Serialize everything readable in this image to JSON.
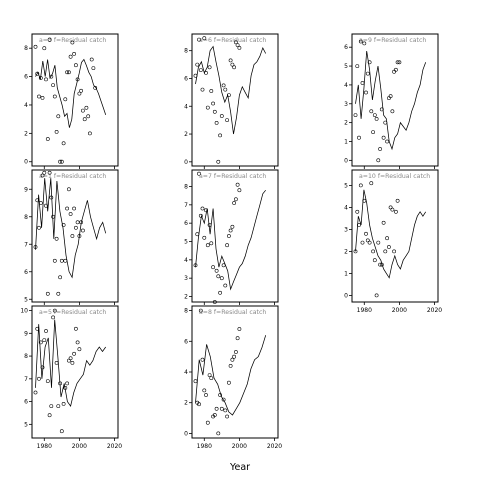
{
  "chart_data": {
    "type": "scatter",
    "xlabel": "Year",
    "series_label_template": "f=Residual catch",
    "x_tick_labels": [
      "1980",
      "2000",
      "2020"
    ],
    "xlim": [
      1973,
      2022
    ],
    "panels": [
      {
        "title": "a=3",
        "ylim": [
          -0.3,
          9
        ],
        "y_ticks": [
          0,
          2,
          4,
          6,
          8
        ],
        "line": [
          6.0,
          6.3,
          5.8,
          7.1,
          6.0,
          7.2,
          5.9,
          6.2,
          6.8,
          5.2,
          4.6,
          4.0,
          3.2,
          3.4,
          2.4,
          3.0,
          4.8,
          5.5,
          6.2,
          7.0,
          7.2,
          6.8,
          6.3,
          6.0,
          5.4,
          5.2,
          4.8,
          4.3,
          3.8,
          3.3
        ],
        "points": [
          [
            1975,
            8.1
          ],
          [
            1976,
            6.2
          ],
          [
            1977,
            4.6
          ],
          [
            1978,
            5.9
          ],
          [
            1979,
            4.5
          ],
          [
            1980,
            8.0
          ],
          [
            1981,
            5.8
          ],
          [
            1982,
            1.6
          ],
          [
            1983,
            8.6
          ],
          [
            1984,
            6.0
          ],
          [
            1985,
            5.4
          ],
          [
            1986,
            4.6
          ],
          [
            1987,
            2.1
          ],
          [
            1988,
            3.2
          ],
          [
            1989,
            0.0
          ],
          [
            1990,
            0.0
          ],
          [
            1991,
            1.3
          ],
          [
            1992,
            4.4
          ],
          [
            1993,
            6.3
          ],
          [
            1994,
            6.3
          ],
          [
            1995,
            7.4
          ],
          [
            1996,
            8.4
          ],
          [
            1997,
            7.6
          ],
          [
            1998,
            6.8
          ],
          [
            1999,
            5.8
          ],
          [
            2000,
            4.8
          ],
          [
            2001,
            5.0
          ],
          [
            2002,
            3.6
          ],
          [
            2003,
            3.0
          ],
          [
            2004,
            3.8
          ],
          [
            2005,
            3.2
          ],
          [
            2006,
            2.0
          ],
          [
            2007,
            7.2
          ],
          [
            2008,
            6.6
          ],
          [
            2009,
            5.2
          ]
        ]
      },
      {
        "title": "a=6",
        "ylim": [
          -0.3,
          9.2
        ],
        "y_ticks": [
          0,
          2,
          4,
          6,
          8
        ],
        "line": [
          5.6,
          6.8,
          7.2,
          6.4,
          6.8,
          8.0,
          8.3,
          7.2,
          6.2,
          5.0,
          4.3,
          4.8,
          3.6,
          2.0,
          3.2,
          4.8,
          5.4,
          5.0,
          4.6,
          6.2,
          7.0,
          7.2,
          7.6,
          8.2,
          7.8
        ],
        "points": [
          [
            1975,
            6.2
          ],
          [
            1976,
            7.0
          ],
          [
            1977,
            8.8
          ],
          [
            1978,
            6.6
          ],
          [
            1979,
            5.2
          ],
          [
            1980,
            8.9
          ],
          [
            1981,
            6.4
          ],
          [
            1982,
            3.9
          ],
          [
            1983,
            6.8
          ],
          [
            1984,
            5.1
          ],
          [
            1985,
            4.2
          ],
          [
            1986,
            3.6
          ],
          [
            1987,
            2.8
          ],
          [
            1988,
            0.0
          ],
          [
            1989,
            1.9
          ],
          [
            1990,
            3.3
          ],
          [
            1991,
            5.5
          ],
          [
            1992,
            5.2
          ],
          [
            1993,
            3.0
          ],
          [
            1994,
            4.8
          ],
          [
            1995,
            7.3
          ],
          [
            1996,
            7.0
          ],
          [
            1997,
            6.8
          ],
          [
            1998,
            8.6
          ],
          [
            1999,
            8.4
          ],
          [
            2000,
            8.2
          ]
        ]
      },
      {
        "title": "a=9",
        "ylim": [
          -0.3,
          6.7
        ],
        "y_ticks": [
          0,
          1,
          2,
          3,
          4,
          5,
          6
        ],
        "line": [
          3.0,
          4.0,
          2.2,
          3.8,
          5.8,
          4.8,
          3.2,
          4.2,
          5.0,
          3.8,
          2.4,
          2.2,
          1.0,
          0.6,
          1.2,
          1.4,
          2.0,
          1.8,
          1.6,
          2.0,
          2.6,
          3.0,
          3.6,
          4.0,
          4.8,
          5.2
        ],
        "points": [
          [
            1975,
            2.4
          ],
          [
            1976,
            5.0
          ],
          [
            1977,
            1.2
          ],
          [
            1978,
            6.3
          ],
          [
            1979,
            4.1
          ],
          [
            1980,
            6.2
          ],
          [
            1981,
            3.6
          ],
          [
            1982,
            4.6
          ],
          [
            1983,
            5.2
          ],
          [
            1984,
            2.6
          ],
          [
            1985,
            1.5
          ],
          [
            1986,
            2.4
          ],
          [
            1987,
            2.2
          ],
          [
            1988,
            0.0
          ],
          [
            1989,
            0.6
          ],
          [
            1990,
            2.7
          ],
          [
            1991,
            1.2
          ],
          [
            1992,
            2.0
          ],
          [
            1993,
            1.0
          ],
          [
            1994,
            3.3
          ],
          [
            1995,
            3.4
          ],
          [
            1996,
            2.6
          ],
          [
            1997,
            4.7
          ],
          [
            1998,
            4.8
          ],
          [
            1999,
            5.2
          ],
          [
            2000,
            5.2
          ]
        ]
      },
      {
        "title": "a=1",
        "ylim": [
          4.9,
          9.7
        ],
        "y_ticks": [
          5,
          6,
          7,
          8,
          9
        ],
        "line": [
          6.8,
          8.8,
          7.6,
          9.4,
          8.2,
          9.4,
          7.2,
          9.3,
          8.2,
          7.6,
          6.6,
          6.0,
          5.8,
          6.6,
          7.0,
          7.8,
          8.2,
          8.6,
          8.0,
          7.6,
          7.2,
          7.6,
          7.8,
          7.4
        ],
        "points": [
          [
            1975,
            6.9
          ],
          [
            1976,
            8.6
          ],
          [
            1977,
            7.6
          ],
          [
            1978,
            8.5
          ],
          [
            1979,
            9.5
          ],
          [
            1980,
            9.6
          ],
          [
            1981,
            8.4
          ],
          [
            1982,
            5.2
          ],
          [
            1983,
            9.6
          ],
          [
            1984,
            8.7
          ],
          [
            1985,
            8.0
          ],
          [
            1986,
            6.4
          ],
          [
            1987,
            7.2
          ],
          [
            1988,
            5.2
          ],
          [
            1989,
            5.8
          ],
          [
            1990,
            6.4
          ],
          [
            1991,
            7.7
          ],
          [
            1992,
            6.4
          ],
          [
            1993,
            8.3
          ],
          [
            1994,
            9.0
          ],
          [
            1995,
            8.1
          ],
          [
            1996,
            7.3
          ],
          [
            1997,
            8.3
          ],
          [
            1998,
            7.6
          ],
          [
            1999,
            7.8
          ],
          [
            2000,
            7.3
          ],
          [
            2001,
            7.8
          ],
          [
            2002,
            7.5
          ]
        ]
      },
      {
        "title": "a=7",
        "ylim": [
          1.7,
          8.9
        ],
        "y_ticks": [
          2,
          3,
          4,
          5,
          6,
          7,
          8
        ],
        "line": [
          3.6,
          5.2,
          6.4,
          6.0,
          6.8,
          5.4,
          6.8,
          4.6,
          3.6,
          4.2,
          3.8,
          3.4,
          2.4,
          2.8,
          3.2,
          3.6,
          3.8,
          4.2,
          4.8,
          5.2,
          5.8,
          6.4,
          7.0,
          7.6,
          7.8
        ],
        "points": [
          [
            1975,
            3.7
          ],
          [
            1976,
            5.4
          ],
          [
            1977,
            8.7
          ],
          [
            1978,
            6.4
          ],
          [
            1979,
            6.8
          ],
          [
            1980,
            5.2
          ],
          [
            1981,
            6.7
          ],
          [
            1982,
            4.8
          ],
          [
            1983,
            5.9
          ],
          [
            1984,
            4.9
          ],
          [
            1985,
            3.6
          ],
          [
            1986,
            1.7
          ],
          [
            1987,
            3.4
          ],
          [
            1988,
            3.1
          ],
          [
            1989,
            2.2
          ],
          [
            1990,
            3.0
          ],
          [
            1991,
            3.7
          ],
          [
            1992,
            2.6
          ],
          [
            1993,
            4.8
          ],
          [
            1994,
            5.3
          ],
          [
            1995,
            5.6
          ],
          [
            1996,
            5.8
          ],
          [
            1997,
            7.1
          ],
          [
            1998,
            7.3
          ],
          [
            1999,
            8.1
          ],
          [
            2000,
            7.8
          ]
        ]
      },
      {
        "title": "a=10",
        "ylim": [
          -0.3,
          5.7
        ],
        "y_ticks": [
          0,
          1,
          2,
          3,
          4,
          5
        ],
        "line": [
          2.0,
          3.6,
          3.2,
          4.8,
          4.2,
          3.2,
          2.6,
          2.2,
          1.8,
          1.6,
          1.2,
          1.0,
          0.8,
          1.4,
          1.8,
          1.4,
          1.2,
          1.6,
          1.8,
          2.0,
          2.6,
          3.2,
          3.6,
          3.8,
          3.6,
          3.8
        ],
        "points": [
          [
            1975,
            2.0
          ],
          [
            1976,
            3.8
          ],
          [
            1977,
            3.2
          ],
          [
            1978,
            5.0
          ],
          [
            1979,
            2.4
          ],
          [
            1980,
            4.3
          ],
          [
            1981,
            2.8
          ],
          [
            1982,
            2.5
          ],
          [
            1983,
            2.4
          ],
          [
            1984,
            5.1
          ],
          [
            1985,
            2.0
          ],
          [
            1986,
            1.6
          ],
          [
            1987,
            0.0
          ],
          [
            1988,
            2.4
          ],
          [
            1989,
            1.4
          ],
          [
            1990,
            1.4
          ],
          [
            1991,
            3.3
          ],
          [
            1992,
            2.0
          ],
          [
            1993,
            2.6
          ],
          [
            1994,
            2.2
          ],
          [
            1995,
            4.0
          ],
          [
            1996,
            3.9
          ],
          [
            1997,
            2.0
          ],
          [
            1998,
            3.8
          ],
          [
            1999,
            4.3
          ]
        ]
      },
      {
        "title": "a=5",
        "ylim": [
          4.4,
          10.2
        ],
        "y_ticks": [
          5,
          6,
          7,
          8,
          9,
          10
        ],
        "line": [
          6.6,
          9.4,
          7.0,
          8.4,
          8.8,
          6.6,
          9.6,
          8.0,
          6.2,
          6.8,
          6.0,
          5.8,
          6.4,
          6.8,
          7.0,
          7.2,
          7.8,
          7.6,
          7.8,
          8.2,
          8.4,
          8.2,
          8.4
        ],
        "points": [
          [
            1975,
            6.4
          ],
          [
            1976,
            9.2
          ],
          [
            1977,
            7.0
          ],
          [
            1978,
            8.6
          ],
          [
            1979,
            7.5
          ],
          [
            1980,
            8.7
          ],
          [
            1981,
            9.1
          ],
          [
            1982,
            6.9
          ],
          [
            1983,
            5.4
          ],
          [
            1984,
            5.8
          ],
          [
            1985,
            9.7
          ],
          [
            1986,
            10.0
          ],
          [
            1987,
            7.7
          ],
          [
            1988,
            5.8
          ],
          [
            1989,
            6.8
          ],
          [
            1990,
            4.7
          ],
          [
            1991,
            5.9
          ],
          [
            1992,
            6.6
          ],
          [
            1993,
            6.8
          ],
          [
            1994,
            7.8
          ],
          [
            1995,
            7.9
          ],
          [
            1996,
            7.7
          ],
          [
            1997,
            8.1
          ],
          [
            1998,
            9.2
          ],
          [
            1999,
            8.6
          ],
          [
            2000,
            8.3
          ]
        ]
      },
      {
        "title": "a=8",
        "ylim": [
          -0.3,
          8.3
        ],
        "y_ticks": [
          0,
          2,
          4,
          6,
          8
        ],
        "line": [
          2.0,
          4.8,
          3.8,
          5.8,
          5.0,
          3.6,
          3.2,
          2.4,
          2.0,
          1.4,
          1.2,
          1.6,
          2.0,
          2.6,
          3.2,
          4.2,
          4.8,
          5.0,
          5.6,
          6.4
        ],
        "points": [
          [
            1975,
            3.4
          ],
          [
            1976,
            2.0
          ],
          [
            1977,
            1.9
          ],
          [
            1978,
            8.0
          ],
          [
            1979,
            4.8
          ],
          [
            1980,
            2.8
          ],
          [
            1981,
            2.5
          ],
          [
            1982,
            0.7
          ],
          [
            1983,
            3.8
          ],
          [
            1984,
            3.6
          ],
          [
            1985,
            1.1
          ],
          [
            1986,
            1.2
          ],
          [
            1987,
            1.6
          ],
          [
            1988,
            0.0
          ],
          [
            1989,
            2.5
          ],
          [
            1990,
            1.6
          ],
          [
            1991,
            2.2
          ],
          [
            1992,
            1.5
          ],
          [
            1993,
            1.1
          ],
          [
            1994,
            3.3
          ],
          [
            1995,
            4.4
          ],
          [
            1996,
            4.8
          ],
          [
            1997,
            5.0
          ],
          [
            1998,
            5.3
          ],
          [
            1999,
            6.2
          ],
          [
            2000,
            6.8
          ]
        ]
      }
    ]
  }
}
